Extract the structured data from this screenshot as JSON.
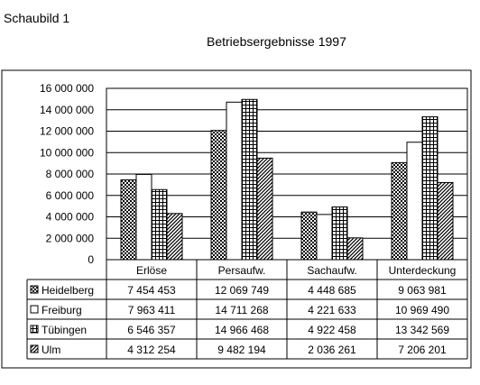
{
  "page": {
    "heading": "Schaubild 1"
  },
  "chart_data": {
    "type": "bar",
    "title": "Betriebsergebnisse 1997",
    "categories": [
      "Erlöse",
      "Persaufw.",
      "Sachaufw.",
      "Unterdeckung"
    ],
    "series": [
      {
        "name": "Heidelberg",
        "pattern": "checker",
        "values": [
          7454453,
          12069749,
          4448685,
          9063981
        ],
        "labels": [
          "7 454 453",
          "12 069 749",
          "4 448 685",
          "9 063 981"
        ]
      },
      {
        "name": "Freiburg",
        "pattern": "white",
        "values": [
          7963411,
          14711268,
          4221633,
          10969490
        ],
        "labels": [
          "7 963 411",
          "14 711 268",
          "4 221 633",
          "10 969 490"
        ]
      },
      {
        "name": "Tübingen",
        "pattern": "grid",
        "values": [
          6546357,
          14966468,
          4922458,
          13342569
        ],
        "labels": [
          "6 546 357",
          "14 966 468",
          "4 922 458",
          "13 342 569"
        ]
      },
      {
        "name": "Ulm",
        "pattern": "diagonal",
        "values": [
          4312254,
          9482194,
          2036261,
          7206201
        ],
        "labels": [
          "4 312 254",
          "9 482 194",
          "2 036 261",
          "7 206 201"
        ]
      }
    ],
    "ylim": [
      0,
      16000000
    ],
    "yticks": [
      {
        "value": 0,
        "label": "0"
      },
      {
        "value": 2000000,
        "label": "2 000 000"
      },
      {
        "value": 4000000,
        "label": "4 000 000"
      },
      {
        "value": 6000000,
        "label": "6 000 000"
      },
      {
        "value": 8000000,
        "label": "8 000 000"
      },
      {
        "value": 10000000,
        "label": "10 000 000"
      },
      {
        "value": 12000000,
        "label": "12 000 000"
      },
      {
        "value": 14000000,
        "label": "14 000 000"
      },
      {
        "value": 16000000,
        "label": "16 000 000"
      }
    ],
    "grid": true,
    "legend": "data-table"
  }
}
